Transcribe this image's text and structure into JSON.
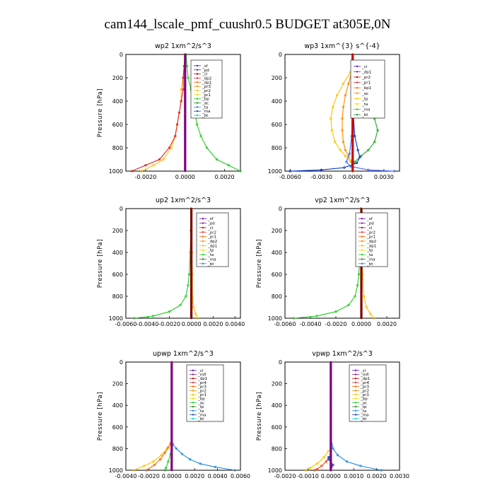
{
  "figure_title": "cam144_lscale_pmf_cuushr0.5  BUDGET at305E,0N",
  "chart_data": [
    {
      "type": "line",
      "title": "wp2   1xm^2/s^3",
      "ylabel": "Pressure [hPa]",
      "ylim": [
        1000,
        0
      ],
      "yticks": [
        "0",
        "200",
        "400",
        "600",
        "800",
        "1000"
      ],
      "xlim": [
        -0.003,
        0.0028
      ],
      "xticks": [
        {
          "v": -0.002,
          "label": "-0.0020"
        },
        {
          "v": 0.0,
          "label": "0.0000"
        },
        {
          "v": 0.002,
          "label": "0.0020"
        }
      ],
      "legend": [
        "_sf",
        "_pd",
        "_cl",
        "_dp2",
        "_dp1",
        "_pr3",
        "_pr2",
        "_pr1",
        "_bp",
        "_ac",
        "_ta",
        "_ma",
        "_bt"
      ],
      "series": [
        {
          "name": "_bp",
          "color": "#22cc22",
          "p": [
            0,
            100,
            200,
            300,
            400,
            500,
            600,
            700,
            800,
            900,
            950,
            1000
          ],
          "x": [
            5e-05,
            0.0001,
            0.00015,
            0.0003,
            0.0004,
            0.0005,
            0.0006,
            0.0008,
            0.0011,
            0.0016,
            0.0022,
            0.0028
          ]
        },
        {
          "name": "_pr1",
          "color": "#ffc000",
          "p": [
            0,
            100,
            200,
            300,
            400,
            500,
            600,
            700,
            800,
            900,
            950,
            1000
          ],
          "x": [
            0,
            -5e-05,
            -0.0001,
            -0.0002,
            -0.0002,
            -0.0003,
            -0.0004,
            -0.0005,
            -0.0007,
            -0.0011,
            -0.0016,
            -0.0022
          ]
        },
        {
          "name": "_dp1",
          "color": "#e02020",
          "p": [
            0,
            100,
            200,
            300,
            400,
            500,
            600,
            700,
            800,
            900,
            950,
            1000
          ],
          "x": [
            0,
            -5e-05,
            -0.0001,
            -0.0001,
            -0.0002,
            -0.0003,
            -0.0004,
            -0.0005,
            -0.0008,
            -0.0013,
            -0.002,
            -0.0027
          ]
        },
        {
          "name": "_pd",
          "color": "#800080",
          "p": [
            0,
            200,
            400,
            600,
            800,
            1000
          ],
          "x": [
            0,
            0,
            0,
            0,
            0,
            0
          ]
        }
      ]
    },
    {
      "type": "line",
      "title": "wp3   1xm^{3} s^{-4}",
      "ylabel": "",
      "ylim": [
        1000,
        0
      ],
      "yticks": [
        "0",
        "200",
        "400",
        "600",
        "800",
        "1000"
      ],
      "xlim": [
        -0.0065,
        0.0045
      ],
      "xticks": [
        {
          "v": -0.006,
          "label": "-0.0060"
        },
        {
          "v": -0.003,
          "label": "-0.0030"
        },
        {
          "v": 0.0,
          "label": "0.0000"
        },
        {
          "v": 0.003,
          "label": "0.0030"
        }
      ],
      "legend": [
        "_cl",
        "_dp1",
        "_pr2",
        "_pr1",
        "_bp1",
        "_ac",
        "_tp",
        "_ta",
        "_ma",
        "_bt"
      ],
      "series": [
        {
          "name": "_ac",
          "color": "#22aa22",
          "p": [
            150,
            250,
            350,
            450,
            550,
            650,
            750,
            820,
            870,
            920,
            960,
            1000
          ],
          "x": [
            0.0001,
            0.0006,
            0.0012,
            0.0017,
            0.0021,
            0.0024,
            0.0021,
            0.0015,
            0.0008,
            0.0002,
            0.0,
            0.0
          ]
        },
        {
          "name": "_pr2",
          "color": "#ffc000",
          "p": [
            150,
            250,
            350,
            450,
            550,
            650,
            750,
            820,
            870,
            920,
            960,
            1000
          ],
          "x": [
            -0.0002,
            -0.0009,
            -0.0015,
            -0.0019,
            -0.0021,
            -0.002,
            -0.0017,
            -0.0012,
            -0.0007,
            -0.0002,
            0.0,
            0.0
          ]
        },
        {
          "name": "_pr1",
          "color": "#ff8800",
          "p": [
            150,
            250,
            350,
            450,
            550,
            650,
            750,
            820,
            870,
            920,
            960,
            1000
          ],
          "x": [
            -0.0001,
            -0.0004,
            -0.0007,
            -0.0009,
            -0.001,
            -0.001,
            -0.0009,
            -0.0007,
            -0.0004,
            -0.0001,
            0.0,
            0.0
          ]
        },
        {
          "name": "_tp",
          "color": "#0033cc",
          "p": [
            0,
            300,
            500,
            700,
            820,
            880,
            930,
            970,
            990,
            1000
          ],
          "x": [
            0.0,
            0.0,
            5e-05,
            0.0002,
            0.0005,
            0.0007,
            0.0004,
            -0.0008,
            -0.003,
            -0.006
          ]
        },
        {
          "name": "_ta",
          "color": "#4466ff",
          "p": [
            0,
            400,
            700,
            850,
            920,
            960,
            990,
            1000
          ],
          "x": [
            0.0,
            0.0,
            -0.0001,
            -0.0003,
            -0.0006,
            -0.0002,
            0.0015,
            0.004
          ]
        },
        {
          "name": "_cl",
          "color": "#cc0000",
          "p": [
            0,
            200,
            400,
            600,
            800,
            1000
          ],
          "x": [
            0,
            0,
            0,
            0,
            0,
            0
          ]
        }
      ]
    },
    {
      "type": "line",
      "title": "up2   1xm^2/s^3",
      "ylabel": "Pressure [hPa]",
      "ylim": [
        1000,
        0
      ],
      "yticks": [
        "0",
        "200",
        "400",
        "600",
        "800",
        "1000"
      ],
      "xlim": [
        -0.006,
        0.0045
      ],
      "xticks": [
        {
          "v": -0.006,
          "label": "-0.0060"
        },
        {
          "v": -0.004,
          "label": "-0.0040"
        },
        {
          "v": -0.002,
          "label": "-0.0020"
        },
        {
          "v": 0.0,
          "label": "0.0000"
        },
        {
          "v": 0.002,
          "label": "0.0020"
        },
        {
          "v": 0.004,
          "label": "0.0040"
        }
      ],
      "legend": [
        "_sf",
        "_pd",
        "_cl",
        "_pr2",
        "_pr1",
        "_dp2",
        "_dp1",
        "_tp",
        "_ta",
        "_ma",
        "_bt"
      ],
      "series": [
        {
          "name": "_dp1",
          "color": "#22cc22",
          "p": [
            0,
            200,
            400,
            600,
            700,
            800,
            880,
            940,
            980,
            1000
          ],
          "x": [
            -5e-05,
            -5e-05,
            -0.0001,
            -0.0002,
            -0.0003,
            -0.0005,
            -0.001,
            -0.002,
            -0.0035,
            -0.0052
          ]
        },
        {
          "name": "_pr1",
          "color": "#ffc000",
          "p": [
            0,
            200,
            400,
            600,
            800,
            900,
            960,
            1000
          ],
          "x": [
            0,
            0,
            5e-05,
            0.0001,
            0.0001,
            0.0002,
            0.0004,
            0.0006
          ]
        },
        {
          "name": "_sf",
          "color": "#800000",
          "p": [
            0,
            200,
            400,
            600,
            800,
            1000
          ],
          "x": [
            0,
            0,
            0,
            0,
            0,
            0
          ]
        }
      ]
    },
    {
      "type": "line",
      "title": "vp2   1xm^2/s^3",
      "ylabel": "Pressure [hPa]",
      "ylim": [
        1000,
        0
      ],
      "yticks": [
        "0",
        "200",
        "400",
        "600",
        "800",
        "1000"
      ],
      "xlim": [
        -0.006,
        0.003
      ],
      "xticks": [
        {
          "v": -0.006,
          "label": "-0.0060"
        },
        {
          "v": -0.004,
          "label": "-0.0040"
        },
        {
          "v": -0.002,
          "label": "-0.0020"
        },
        {
          "v": 0.0,
          "label": "0.0000"
        },
        {
          "v": 0.002,
          "label": "0.0020"
        }
      ],
      "legend": [
        "_sf",
        "_pd",
        "_cl",
        "_pr2",
        "_pr1",
        "_dp2",
        "_dp1",
        "_tp",
        "_ta",
        "_ma",
        "_bt"
      ],
      "series": [
        {
          "name": "_dp1",
          "color": "#22cc22",
          "p": [
            0,
            200,
            400,
            600,
            700,
            800,
            880,
            940,
            980,
            1000
          ],
          "x": [
            -5e-05,
            -5e-05,
            -0.0001,
            -0.0002,
            -0.0003,
            -0.0005,
            -0.001,
            -0.002,
            -0.0035,
            -0.0053
          ]
        },
        {
          "name": "_pr1",
          "color": "#ffc000",
          "p": [
            0,
            200,
            400,
            600,
            800,
            900,
            960,
            1000
          ],
          "x": [
            0,
            0,
            5e-05,
            0.0001,
            0.0002,
            0.0004,
            0.0007,
            0.001
          ]
        },
        {
          "name": "_sf",
          "color": "#800000",
          "p": [
            0,
            200,
            400,
            600,
            800,
            1000
          ],
          "x": [
            0,
            0,
            0,
            0,
            0,
            0
          ]
        }
      ]
    },
    {
      "type": "line",
      "title": "upwp   1xm^2/s^3",
      "ylabel": "Pressure [hPa]",
      "ylim": [
        1000,
        0
      ],
      "yticks": [
        "0",
        "200",
        "400",
        "600",
        "800",
        "1000"
      ],
      "xlim": [
        -0.004,
        0.006
      ],
      "xticks": [
        {
          "v": -0.004,
          "label": "-0.0040"
        },
        {
          "v": -0.002,
          "label": "-0.0020"
        },
        {
          "v": 0.0,
          "label": "0.0000"
        },
        {
          "v": 0.002,
          "label": "0.0020"
        },
        {
          "v": 0.004,
          "label": "0.0040"
        },
        {
          "v": 0.006,
          "label": "0.0060"
        }
      ],
      "legend": [
        "_cl",
        "_mfl",
        "_dp1",
        "_pr4",
        "_pr3",
        "_pr2",
        "_pr1",
        "_bp",
        "_ac",
        "_tp",
        "_ta",
        "_ma",
        "_bt"
      ],
      "series": [
        {
          "name": "_tp",
          "color": "#2288dd",
          "p": [
            700,
            760,
            800,
            850,
            900,
            940,
            970,
            1000
          ],
          "x": [
            0.0,
            0.0001,
            0.0004,
            0.0009,
            0.0016,
            0.0025,
            0.0038,
            0.0055
          ]
        },
        {
          "name": "_pr2",
          "color": "#ffc000",
          "p": [
            760,
            800,
            860,
            920,
            960,
            1000
          ],
          "x": [
            -0.0001,
            -0.0004,
            -0.0009,
            -0.0016,
            -0.0024,
            -0.0033
          ]
        },
        {
          "name": "_pr3",
          "color": "#ff6600",
          "p": [
            750,
            790,
            840,
            900,
            950,
            1000
          ],
          "x": [
            -0.0001,
            -0.0003,
            -0.0006,
            -0.001,
            -0.0015,
            -0.0022
          ]
        },
        {
          "name": "_bp",
          "color": "#22cc22",
          "p": [
            780,
            850,
            920,
            980,
            1000
          ],
          "x": [
            0.0,
            -0.0001,
            -0.0003,
            -0.0005,
            -0.0006
          ]
        },
        {
          "name": "_cl",
          "color": "#800080",
          "p": [
            0,
            200,
            400,
            600,
            800,
            1000
          ],
          "x": [
            0,
            0,
            0,
            0,
            0,
            0
          ]
        }
      ]
    },
    {
      "type": "line",
      "title": "vpwp   1xm^2/s^3",
      "ylabel": "Pressure [hPa]",
      "ylim": [
        1000,
        0
      ],
      "yticks": [
        "0",
        "200",
        "400",
        "600",
        "800",
        "1000"
      ],
      "xlim": [
        -0.002,
        0.003
      ],
      "xticks": [
        {
          "v": -0.002,
          "label": "-0.0020"
        },
        {
          "v": -0.001,
          "label": "-0.0010"
        },
        {
          "v": 0.0,
          "label": "0.0000"
        },
        {
          "v": 0.001,
          "label": "0.0010"
        },
        {
          "v": 0.002,
          "label": "0.0020"
        },
        {
          "v": 0.003,
          "label": "0.0030"
        }
      ],
      "legend": [
        "_cl",
        "_mfl",
        "_dp1",
        "_pr4",
        "_pr3",
        "_pr2",
        "_pr1",
        "_bp",
        "_ac",
        "_tp",
        "_ta",
        "_ma",
        "_bt"
      ],
      "series": [
        {
          "name": "_tp",
          "color": "#2288dd",
          "p": [
            700,
            800,
            860,
            920,
            960,
            1000
          ],
          "x": [
            0.0,
            0.0001,
            0.0003,
            0.0007,
            0.0013,
            0.0022
          ]
        },
        {
          "name": "_pr2",
          "color": "#ffc000",
          "p": [
            820,
            880,
            940,
            980,
            1000
          ],
          "x": [
            -0.0001,
            -0.0003,
            -0.0006,
            -0.0009,
            -0.0011
          ]
        },
        {
          "name": "_pr3",
          "color": "#ff4400",
          "p": [
            860,
            920,
            960,
            990,
            1000
          ],
          "x": [
            0.0,
            -0.0002,
            -0.0004,
            -0.0006,
            -0.0007
          ]
        },
        {
          "name": "_ta",
          "color": "#2244aa",
          "p": [
            860,
            880,
            900,
            920,
            950,
            1000
          ],
          "x": [
            0.0,
            -0.0001,
            -0.0001,
            0.0,
            0.0001,
            0.0
          ]
        },
        {
          "name": "_cl",
          "color": "#800080",
          "p": [
            0,
            200,
            400,
            600,
            800,
            1000
          ],
          "x": [
            0,
            0,
            0,
            0,
            0,
            0
          ]
        }
      ]
    }
  ]
}
